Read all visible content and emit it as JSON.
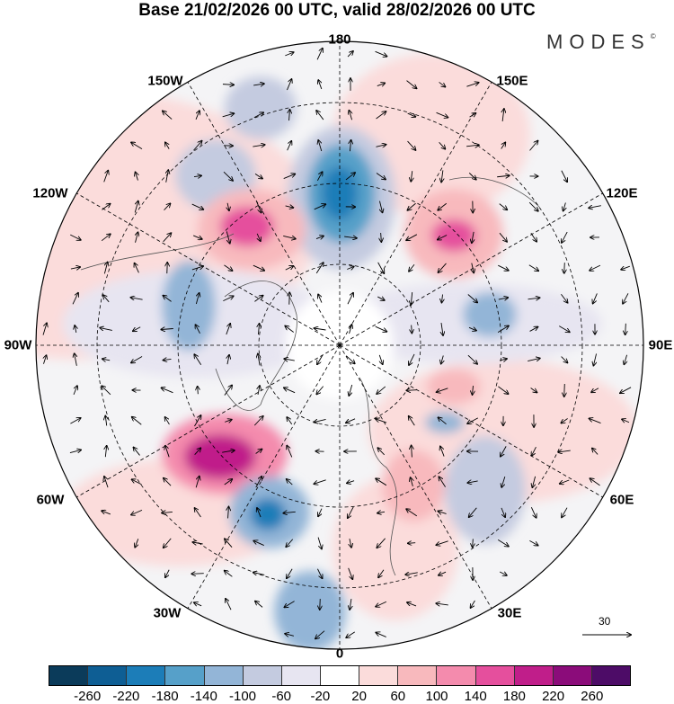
{
  "title": "Base 21/02/2026 00 UTC, valid 28/02/2026 00 UTC",
  "logo": "MODES",
  "logo_mark": "©",
  "longitude_labels": {
    "top": "180",
    "bottom": "0",
    "left": "90W",
    "right": "90E",
    "nw_outer": "150W",
    "ne_outer": "150E",
    "nw_inner": "120W",
    "ne_inner": "120E",
    "sw_inner": "60W",
    "se_inner": "60E",
    "sw_outer": "30W",
    "se_outer": "30E"
  },
  "reference_vector": "30",
  "colorbar": {
    "colors": [
      "#0b3b5a",
      "#0e5e94",
      "#1c7db8",
      "#56a0c9",
      "#93b5d7",
      "#c4cbe0",
      "#e7e5f1",
      "#ffffff",
      "#fbdcdb",
      "#f8b9bd",
      "#f48bad",
      "#e54f9d",
      "#c01e8a",
      "#8b0c7a",
      "#4d0c67"
    ],
    "ticks": [
      "-260",
      "-220",
      "-180",
      "-140",
      "-100",
      "-60",
      "-20",
      "20",
      "60",
      "100",
      "140",
      "180",
      "220",
      "260"
    ]
  }
}
